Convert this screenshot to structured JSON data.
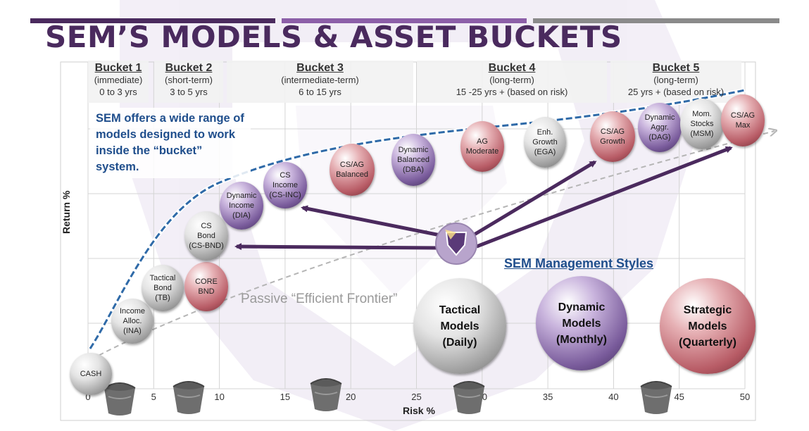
{
  "title": "SEM’S MODELS & ASSET BUCKETS",
  "buckets": [
    {
      "name": "Bucket 1",
      "term": "(immediate)",
      "range": "0 to 3 yrs"
    },
    {
      "name": "Bucket 2",
      "term": "(short-term)",
      "range": "3 to 5 yrs"
    },
    {
      "name": "Bucket 3",
      "term": "(intermediate-term)",
      "range": "6 to 15 yrs"
    },
    {
      "name": "Bucket 4",
      "term": "(long-term)",
      "range": "15 -25 yrs + (based on risk)"
    },
    {
      "name": "Bucket 5",
      "term": "(long-term)",
      "range": "25 yrs + (based on risk)"
    }
  ],
  "offer_text": "SEM offers a wide range of models designed to work inside the “bucket” system.",
  "management_styles_title": "SEM Management Styles",
  "frontier_label": "Passive “Efficient Frontier”",
  "axes": {
    "x_label": "Risk %",
    "y_label": "Return %",
    "x_ticks": [
      "0",
      "5",
      "10",
      "15",
      "20",
      "25",
      "30",
      "35",
      "40",
      "45",
      "50"
    ]
  },
  "models": [
    {
      "label": "CASH",
      "color": "silver",
      "risk": 0,
      "return_level": 0.4
    },
    {
      "label": "Income\nAlloc.\n(INA)",
      "color": "silver",
      "risk": 3.5,
      "return_level": 1.5
    },
    {
      "label": "Tactical\nBond\n(TB)",
      "color": "silver",
      "risk": 5.5,
      "return_level": 2.3
    },
    {
      "label": "CORE\nBND",
      "color": "red",
      "risk": 9,
      "return_level": 2.1
    },
    {
      "label": "CS\nBond\n(CS-BND)",
      "color": "silver",
      "risk": 9,
      "return_level": 3.4
    },
    {
      "label": "Dynamic\nIncome\n(DIA)",
      "color": "purple",
      "risk": 11.5,
      "return_level": 4.0
    },
    {
      "label": "CS\nIncome\n(CS-INC)",
      "color": "purple",
      "risk": 15,
      "return_level": 4.5
    },
    {
      "label": "CS/AG\nBalanced",
      "color": "red",
      "risk": 20,
      "return_level": 4.8
    },
    {
      "label": "Dynamic\nBalanced\n(DBA)",
      "color": "purple",
      "risk": 25,
      "return_level": 5.1
    },
    {
      "label": "AG\nModerate",
      "color": "red",
      "risk": 30,
      "return_level": 5.3
    },
    {
      "label": "Enh.\nGrowth\n(EGA)",
      "color": "silver",
      "risk": 35,
      "return_level": 5.4
    },
    {
      "label": "CS/AG\nGrowth",
      "color": "red",
      "risk": 40,
      "return_level": 5.5
    },
    {
      "label": "Dynamic\nAggr.\n(DAG)",
      "color": "purple",
      "risk": 42,
      "return_level": 5.6
    },
    {
      "label": "Mom.\nStocks\n(MSM)",
      "color": "silver",
      "risk": 46,
      "return_level": 5.7
    },
    {
      "label": "CS/AG\nMax",
      "color": "red",
      "risk": 50,
      "return_level": 5.8
    }
  ],
  "styles": [
    {
      "name": "Tactical\nModels\n(Daily)",
      "color": "silver"
    },
    {
      "name": "Dynamic\nModels\n(Monthly)",
      "color": "purple"
    },
    {
      "name": "Strategic\nModels\n(Quarterly)",
      "color": "red"
    }
  ],
  "colors": {
    "title": "#4a2a5e",
    "accent_blue": "#1f4e8c",
    "arrow": "#4b2a5e",
    "bar_dark": "#4a2a5e",
    "bar_mid": "#8c5fa8",
    "bar_gray": "#8a8a8a"
  }
}
